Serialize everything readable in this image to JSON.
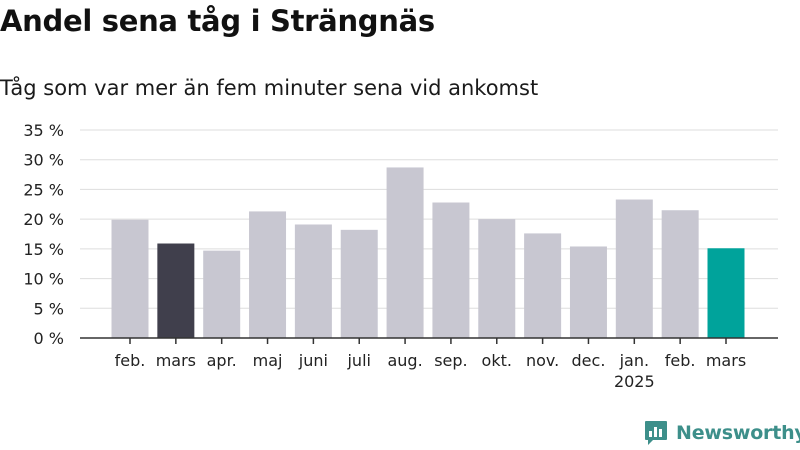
{
  "chart_data": {
    "type": "bar",
    "title": "Andel sena tåg i Strängnäs",
    "subtitle": "Tåg som var mer än fem minuter sena vid ankomst",
    "categories": [
      "feb.",
      "mars",
      "apr.",
      "maj",
      "juni",
      "juli",
      "aug.",
      "sep.",
      "okt.",
      "nov.",
      "dec.",
      "jan.",
      "feb.",
      "mars"
    ],
    "year_labels": [
      "",
      "",
      "",
      "",
      "",
      "",
      "",
      "",
      "",
      "",
      "",
      "2025",
      "",
      ""
    ],
    "values": [
      19.9,
      15.9,
      14.7,
      21.3,
      19.1,
      18.2,
      28.7,
      22.8,
      20.0,
      17.6,
      15.4,
      23.3,
      21.5,
      15.1
    ],
    "highlight": [
      "default",
      "prior",
      "default",
      "default",
      "default",
      "default",
      "default",
      "default",
      "default",
      "default",
      "default",
      "default",
      "default",
      "current"
    ],
    "colors": {
      "default": "#c8c7d1",
      "prior": "#403f4c",
      "current": "#00a39b",
      "grid": "#dddddd",
      "axis": "#333333"
    },
    "y_ticks": [
      0,
      5,
      10,
      15,
      20,
      25,
      30,
      35
    ],
    "y_tick_labels": [
      "0 %",
      "5 %",
      "10 %",
      "15 %",
      "20 %",
      "25 %",
      "30 %",
      "35 %"
    ],
    "ylim": [
      0,
      35
    ],
    "xlabel": "",
    "ylabel": "",
    "grid": true
  },
  "brand": {
    "name": "Newsworthy",
    "icon": "newsworthy-logo-icon",
    "color": "#3d8f8a"
  }
}
